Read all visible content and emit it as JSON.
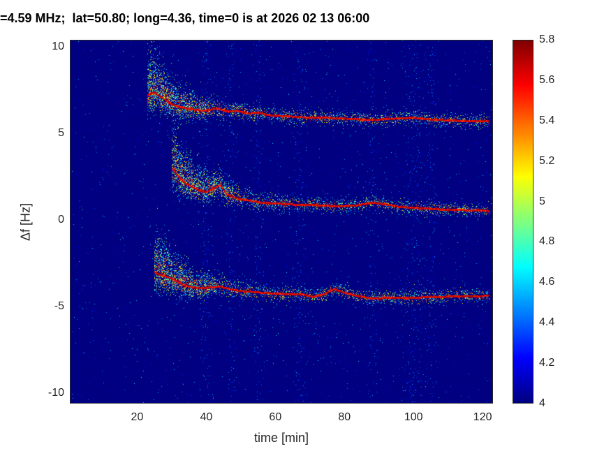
{
  "title": "=4.59 MHz;  lat=50.80; long=4.36, time=0 is at 2026 02 13 06:00",
  "axes": {
    "xlabel": "time [min]",
    "ylabel": "Δf [Hz]",
    "xlim": [
      0.5,
      123
    ],
    "ylim": [
      -10.6,
      10.4
    ],
    "xticks": [
      20,
      40,
      60,
      80,
      100,
      120
    ],
    "yticks": [
      -10,
      -5,
      0,
      5,
      10
    ]
  },
  "colorbar": {
    "min": 4,
    "max": 5.8,
    "ticks": [
      "4",
      "4.2",
      "4.4",
      "4.6",
      "4.8",
      "5",
      "5.2",
      "5.4",
      "5.6",
      "5.8"
    ]
  },
  "chart_data": {
    "type": "heatmap",
    "title": "=4.59 MHz;  lat=50.80; long=4.36, time=0 is at 2026 02 13 06:00",
    "xlabel": "time [min]",
    "ylabel": "Δf [Hz]",
    "colormap": "jet",
    "value_range": [
      4,
      5.8
    ],
    "background_value": 4,
    "xlim": [
      0.5,
      123
    ],
    "ylim": [
      -10.6,
      10.4
    ],
    "series": [
      {
        "name": "upper-doppler-trace",
        "peak_value": 5.8,
        "x": [
          23,
          25,
          27,
          29,
          31,
          34,
          37,
          40,
          43,
          46,
          49,
          52,
          55,
          58,
          62,
          66,
          70,
          75,
          80,
          85,
          90,
          95,
          100,
          105,
          110,
          115,
          120,
          122
        ],
        "y": [
          7.2,
          7.35,
          7.1,
          6.8,
          6.6,
          6.45,
          6.35,
          6.3,
          6.45,
          6.25,
          6.3,
          6.15,
          6.2,
          6.05,
          6.0,
          5.95,
          5.9,
          5.9,
          5.85,
          5.8,
          5.8,
          5.85,
          5.9,
          5.8,
          5.75,
          5.7,
          5.7,
          5.7
        ]
      },
      {
        "name": "middle-doppler-trace",
        "peak_value": 5.8,
        "x": [
          30,
          32,
          34,
          36,
          38,
          40,
          42,
          44,
          46,
          48,
          50,
          53,
          56,
          60,
          64,
          68,
          72,
          76,
          80,
          84,
          88,
          92,
          96,
          100,
          104,
          108,
          112,
          116,
          120,
          122
        ],
        "y": [
          3.0,
          2.5,
          2.1,
          1.9,
          1.7,
          1.6,
          1.8,
          2.0,
          1.5,
          1.3,
          1.2,
          1.1,
          1.0,
          0.95,
          0.9,
          0.85,
          0.85,
          0.8,
          0.8,
          0.85,
          1.0,
          0.9,
          0.75,
          0.7,
          0.65,
          0.6,
          0.6,
          0.55,
          0.55,
          0.5
        ]
      },
      {
        "name": "lower-doppler-trace",
        "peak_value": 5.8,
        "x": [
          25,
          27,
          29,
          31,
          33,
          35,
          38,
          41,
          44,
          47,
          50,
          53,
          56,
          60,
          64,
          68,
          71,
          74,
          77,
          80,
          84,
          88,
          92,
          96,
          100,
          104,
          108,
          112,
          116,
          120,
          122
        ],
        "y": [
          -3.0,
          -3.2,
          -3.3,
          -3.5,
          -3.7,
          -3.85,
          -3.95,
          -3.9,
          -3.85,
          -4.0,
          -4.1,
          -4.15,
          -4.2,
          -4.25,
          -4.3,
          -4.3,
          -4.45,
          -4.3,
          -4.0,
          -4.2,
          -4.4,
          -4.55,
          -4.5,
          -4.5,
          -4.5,
          -4.45,
          -4.45,
          -4.4,
          -4.4,
          -4.4,
          -4.35
        ]
      }
    ],
    "noise_columns": [
      {
        "t": 40,
        "w": 1.5
      },
      {
        "t": 47,
        "w": 1.0
      },
      {
        "t": 55,
        "w": 1.2
      },
      {
        "t": 67,
        "w": 1.5
      },
      {
        "t": 88,
        "w": 1.2
      },
      {
        "t": 100,
        "w": 2.5
      },
      {
        "t": 105,
        "w": 1.5
      }
    ]
  }
}
